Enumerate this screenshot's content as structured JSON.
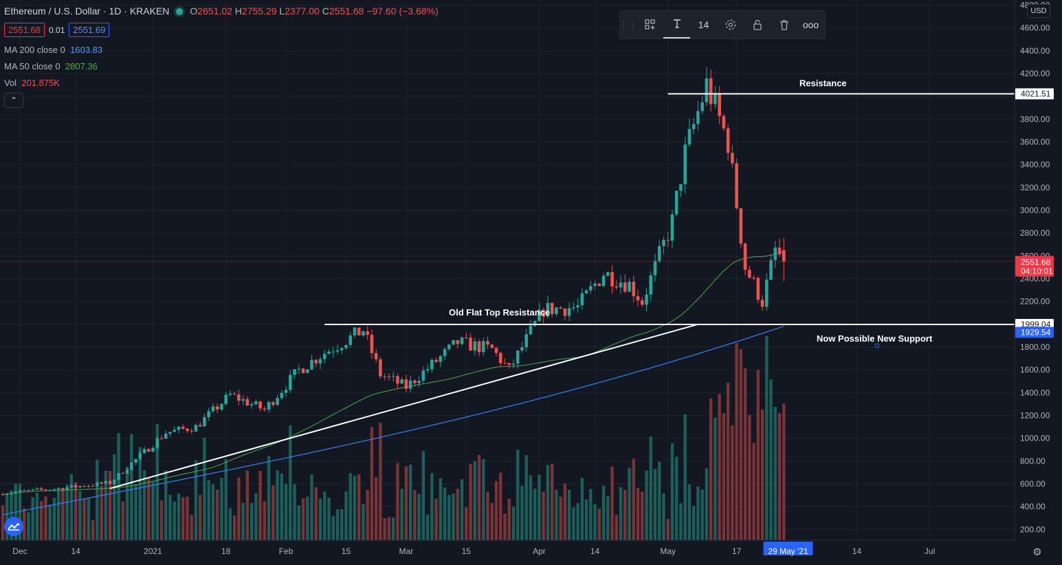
{
  "header": {
    "symbol": "Ethereum / U.S. Dollar · 1D · KRAKEN",
    "open_key": "O",
    "open": "2651.02",
    "high_key": "H",
    "high": "2755.29",
    "low_key": "L",
    "low": "2377.00",
    "close_key": "C",
    "close": "2551.68",
    "change": "−97.60 (−3.68%)"
  },
  "prices": {
    "sell": "2551.68",
    "spread": "0.01",
    "buy": "2551.69"
  },
  "indicators": {
    "ma200_label": "MA 200 close 0",
    "ma200_value": "1603.83",
    "ma50_label": "MA 50 close 0",
    "ma50_value": "2807.36",
    "vol_label": "Vol",
    "vol_value": "201.875K"
  },
  "toolbar": {
    "font_size": "14",
    "more": "ooo"
  },
  "currency": "USD",
  "colors": {
    "up": "#26a69a",
    "down": "#ef5350",
    "ma200": "#2f7ded",
    "ma50": "#43a047",
    "background": "#131722",
    "grid": "#1f2430",
    "annotation": "#ffffff"
  },
  "chart_data": {
    "type": "candlestick",
    "x_range": [
      "2020-11-27",
      "2021-07-15"
    ],
    "y_range": [
      0,
      4800
    ],
    "y_ticks": [
      "200.00",
      "400.00",
      "600.00",
      "800.00",
      "1000.00",
      "1200.00",
      "1400.00",
      "1600.00",
      "1800.00",
      "2000.00",
      "2200.00",
      "2400.00",
      "2600.00",
      "2800.00",
      "3000.00",
      "3200.00",
      "3400.00",
      "3600.00",
      "3800.00",
      "4000.00",
      "4200.00",
      "4400.00",
      "4600.00",
      "4800.00"
    ],
    "x_ticks": [
      {
        "date": "2020-12-01",
        "label": "Dec"
      },
      {
        "date": "2020-12-14",
        "label": "14"
      },
      {
        "date": "2021-01-01",
        "label": "2021"
      },
      {
        "date": "2021-01-18",
        "label": "18"
      },
      {
        "date": "2021-02-01",
        "label": "Feb"
      },
      {
        "date": "2021-02-15",
        "label": "15"
      },
      {
        "date": "2021-03-01",
        "label": "Mar"
      },
      {
        "date": "2021-03-15",
        "label": "15"
      },
      {
        "date": "2021-04-01",
        "label": "Apr"
      },
      {
        "date": "2021-04-14",
        "label": "14"
      },
      {
        "date": "2021-05-01",
        "label": "May"
      },
      {
        "date": "2021-05-17",
        "label": "17"
      },
      {
        "date": "2021-06-14",
        "label": "14"
      },
      {
        "date": "2021-07-01",
        "label": "Jul"
      }
    ],
    "cursor_date_label": "29 May '21",
    "key_dates": [
      {
        "date": "2020-11-27",
        "close": 520
      },
      {
        "date": "2020-12-10",
        "close": 560
      },
      {
        "date": "2020-12-22",
        "close": 610
      },
      {
        "date": "2021-01-04",
        "close": 1050
      },
      {
        "date": "2021-01-11",
        "close": 1100
      },
      {
        "date": "2021-01-19",
        "close": 1380
      },
      {
        "date": "2021-01-27",
        "close": 1250
      },
      {
        "date": "2021-02-04",
        "close": 1600
      },
      {
        "date": "2021-02-10",
        "close": 1750
      },
      {
        "date": "2021-02-19",
        "close": 1950
      },
      {
        "date": "2021-02-23",
        "close": 1560
      },
      {
        "date": "2021-03-01",
        "close": 1450
      },
      {
        "date": "2021-03-13",
        "close": 1840
      },
      {
        "date": "2021-03-21",
        "close": 1780
      },
      {
        "date": "2021-03-25",
        "close": 1600
      },
      {
        "date": "2021-04-02",
        "close": 2130
      },
      {
        "date": "2021-04-10",
        "close": 2150
      },
      {
        "date": "2021-04-16",
        "close": 2450
      },
      {
        "date": "2021-04-22",
        "close": 2350
      },
      {
        "date": "2021-04-25",
        "close": 2200
      },
      {
        "date": "2021-05-02",
        "close": 2900
      },
      {
        "date": "2021-05-05",
        "close": 3500
      },
      {
        "date": "2021-05-10",
        "close": 4100
      },
      {
        "date": "2021-05-12",
        "close": 3900
      },
      {
        "date": "2021-05-15",
        "close": 3600
      },
      {
        "date": "2021-05-19",
        "close": 2500
      },
      {
        "date": "2021-05-23",
        "close": 2200
      },
      {
        "date": "2021-05-26",
        "close": 2650
      },
      {
        "date": "2021-05-28",
        "close": 2551.68
      }
    ],
    "volume_unit": "K",
    "moving_averages": [
      {
        "name": "MA 200 close 0",
        "value": "1603.83",
        "color": "#2f7ded"
      },
      {
        "name": "MA 50 close 0",
        "value": "2807.36",
        "color": "#43a047"
      }
    ],
    "current_price": {
      "value": "2551.68",
      "countdown": "04:10:01"
    },
    "annotations": [
      {
        "text": "Resistance",
        "type": "horizontal",
        "price": 4021.51,
        "price_label": "4021.51",
        "x_from": "2021-05-01",
        "x_to": "2021-07-22"
      },
      {
        "text": "Old Flat Top Resistance",
        "type": "horizontal",
        "price": 1999.04,
        "price_label": "1999.04",
        "x_from": "2021-02-10",
        "x_to": "2021-07-22"
      },
      {
        "text": "Now Possible New Support",
        "type": "label",
        "price": 1860,
        "x": "2021-06-05"
      },
      {
        "text": "",
        "type": "trendline",
        "from": {
          "date": "2020-12-22",
          "price": 560
        },
        "to": {
          "date": "2021-05-08",
          "price": 2000
        }
      }
    ],
    "blue_price_label": "1929.54"
  }
}
